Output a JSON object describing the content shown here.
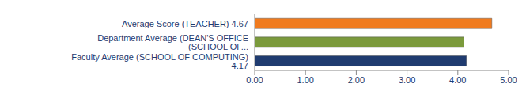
{
  "chart_data": {
    "type": "bar",
    "orientation": "horizontal",
    "categories": [
      "Average Score (TEACHER)  4.67",
      "Department Average (DEAN'S OFFICE (SCHOOL OF...",
      "Faculty Average (SCHOOL OF COMPUTING)  4.17"
    ],
    "values": [
      4.67,
      4.12,
      4.17
    ],
    "colors": [
      "#f07b1f",
      "#7b9a3c",
      "#1f3b70"
    ],
    "xlim": [
      0,
      5
    ],
    "xticks": [
      {
        "value": 0,
        "label": "0.00"
      },
      {
        "value": 1,
        "label": "1.00"
      },
      {
        "value": 2,
        "label": "2.00"
      },
      {
        "value": 3,
        "label": "3.00"
      },
      {
        "value": 4,
        "label": "4.00"
      },
      {
        "value": 5,
        "label": "5.00"
      }
    ],
    "grid": false
  }
}
